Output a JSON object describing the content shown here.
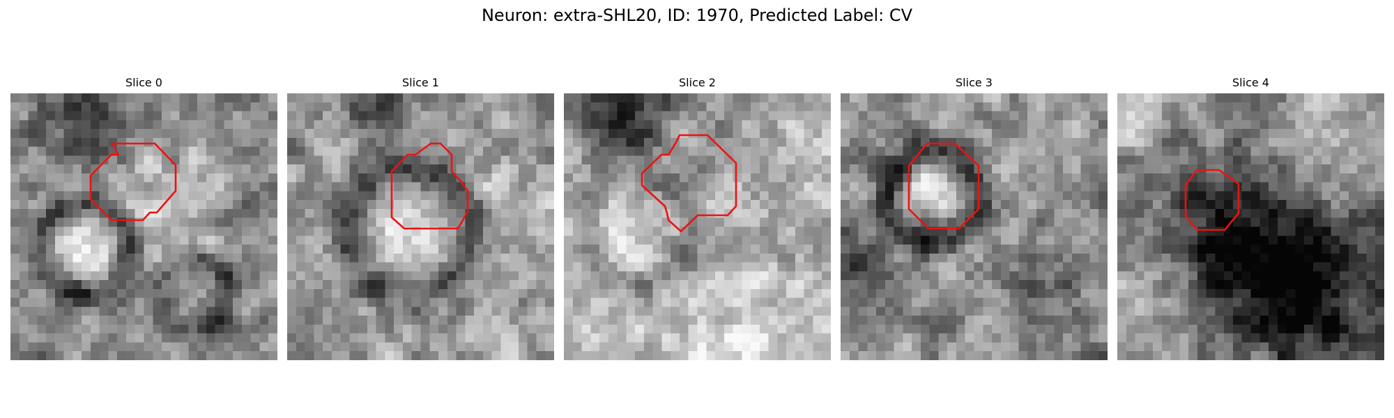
{
  "figure": {
    "title": "Neuron: extra-SHL20, ID: 1970, Predicted Label: CV",
    "contour_color": "#ee1111",
    "colormap": "grayscale",
    "grid_size": 30,
    "slices": [
      {
        "title": "Slice 0",
        "seed": 11,
        "style": "bright_cell_lower_left"
      },
      {
        "title": "Slice 1",
        "seed": 23,
        "style": "ring_center"
      },
      {
        "title": "Slice 2",
        "seed": 37,
        "style": "bright_lower_half"
      },
      {
        "title": "Slice 3",
        "seed": 41,
        "style": "dark_ring_bright_center"
      },
      {
        "title": "Slice 4",
        "seed": 59,
        "style": "dark_lower_right"
      }
    ]
  }
}
